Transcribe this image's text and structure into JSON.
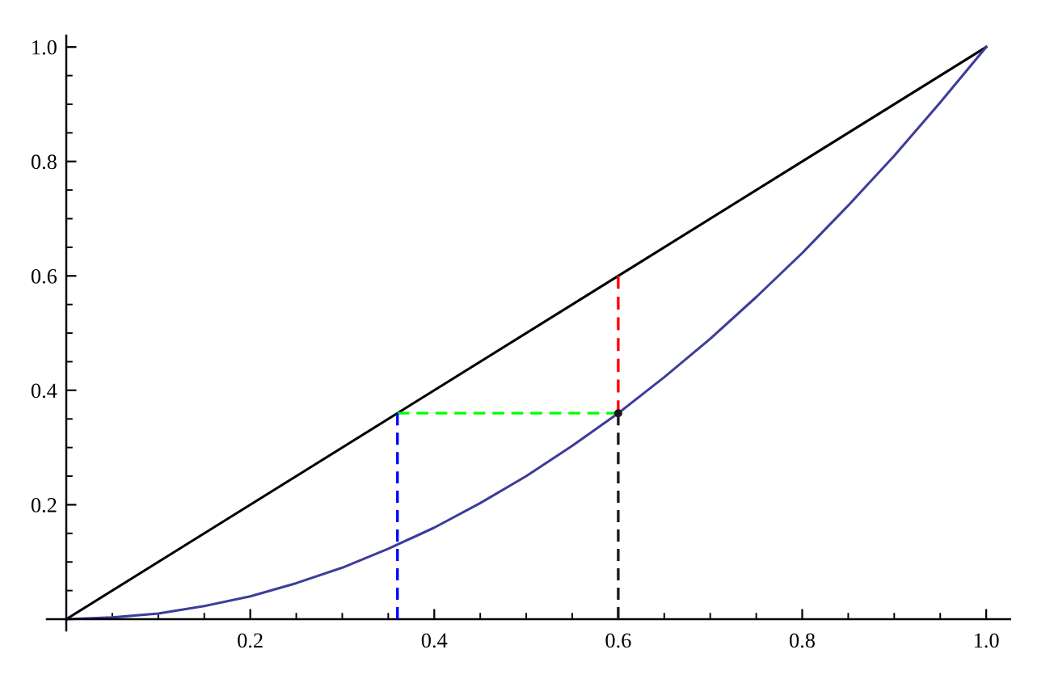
{
  "chart_data": {
    "type": "line",
    "xlim": [
      0,
      1.026
    ],
    "ylim": [
      0,
      1.02
    ],
    "xticks": [
      {
        "value": 0.05,
        "label": null
      },
      {
        "value": 0.1,
        "label": null
      },
      {
        "value": 0.15,
        "label": null
      },
      0.2,
      {
        "value": 0.25,
        "label": null
      },
      {
        "value": 0.3,
        "label": null
      },
      {
        "value": 0.35,
        "label": null
      },
      0.4,
      {
        "value": 0.45,
        "label": null
      },
      {
        "value": 0.5,
        "label": null
      },
      {
        "value": 0.55,
        "label": null
      },
      0.6,
      {
        "value": 0.65,
        "label": null
      },
      {
        "value": 0.7,
        "label": null
      },
      {
        "value": 0.75,
        "label": null
      },
      0.8,
      {
        "value": 0.85,
        "label": null
      },
      {
        "value": 0.9,
        "label": null
      },
      {
        "value": 0.95,
        "label": null
      },
      {
        "value": 1,
        "label": "1.0"
      }
    ],
    "yticks": [
      {
        "value": 0.05,
        "label": null
      },
      {
        "value": 0.1,
        "label": null
      },
      {
        "value": 0.15,
        "label": null
      },
      0.2,
      {
        "value": 0.25,
        "label": null
      },
      {
        "value": 0.3,
        "label": null
      },
      {
        "value": 0.35,
        "label": null
      },
      0.4,
      {
        "value": 0.45,
        "label": null
      },
      {
        "value": 0.5,
        "label": null
      },
      {
        "value": 0.55,
        "label": null
      },
      0.6,
      {
        "value": 0.65,
        "label": null
      },
      {
        "value": 0.7,
        "label": null
      },
      {
        "value": 0.75,
        "label": null
      },
      0.8,
      {
        "value": 0.85,
        "label": null
      },
      {
        "value": 0.9,
        "label": null
      },
      {
        "value": 0.95,
        "label": null
      },
      {
        "value": 1,
        "label": "1.0"
      }
    ],
    "series": [
      {
        "color": "#000000",
        "x": [
          0,
          1
        ],
        "values": [
          0,
          1
        ],
        "line_style": "solid"
      },
      {
        "color": "#3d3d99",
        "x": [
          0,
          0.05,
          0.1,
          0.15,
          0.2,
          0.25,
          0.3,
          0.35,
          0.4,
          0.45,
          0.5,
          0.55,
          0.6,
          0.65,
          0.7,
          0.75,
          0.8,
          0.85,
          0.9,
          0.95,
          1
        ],
        "values": [
          0,
          0.003,
          0.01,
          0.023,
          0.04,
          0.063,
          0.09,
          0.123,
          0.16,
          0.203,
          0.25,
          0.303,
          0.36,
          0.423,
          0.49,
          0.563,
          0.64,
          0.723,
          0.81,
          0.903,
          1
        ],
        "line_style": "solid"
      },
      {
        "color": "#ff0000",
        "x": [
          0.6,
          0.6
        ],
        "values": [
          0.36,
          0.6
        ],
        "line_style": "dashed"
      },
      {
        "color": "#00ff00",
        "x": [
          0.36,
          0.6
        ],
        "values": [
          0.36,
          0.36
        ],
        "line_style": "dashed"
      },
      {
        "color": "#0000ff",
        "x": [
          0.36,
          0.36
        ],
        "values": [
          0,
          0.36
        ],
        "line_style": "dashed"
      },
      {
        "color": "#1a1a1a",
        "x": [
          0.6,
          0.6
        ],
        "values": [
          0,
          0.36
        ],
        "line_style": "dashed"
      },
      {
        "type": "scatter",
        "color": "#1a1a1a",
        "x": [
          0.6
        ],
        "values": [
          0.36
        ],
        "marker": "circle"
      }
    ]
  }
}
